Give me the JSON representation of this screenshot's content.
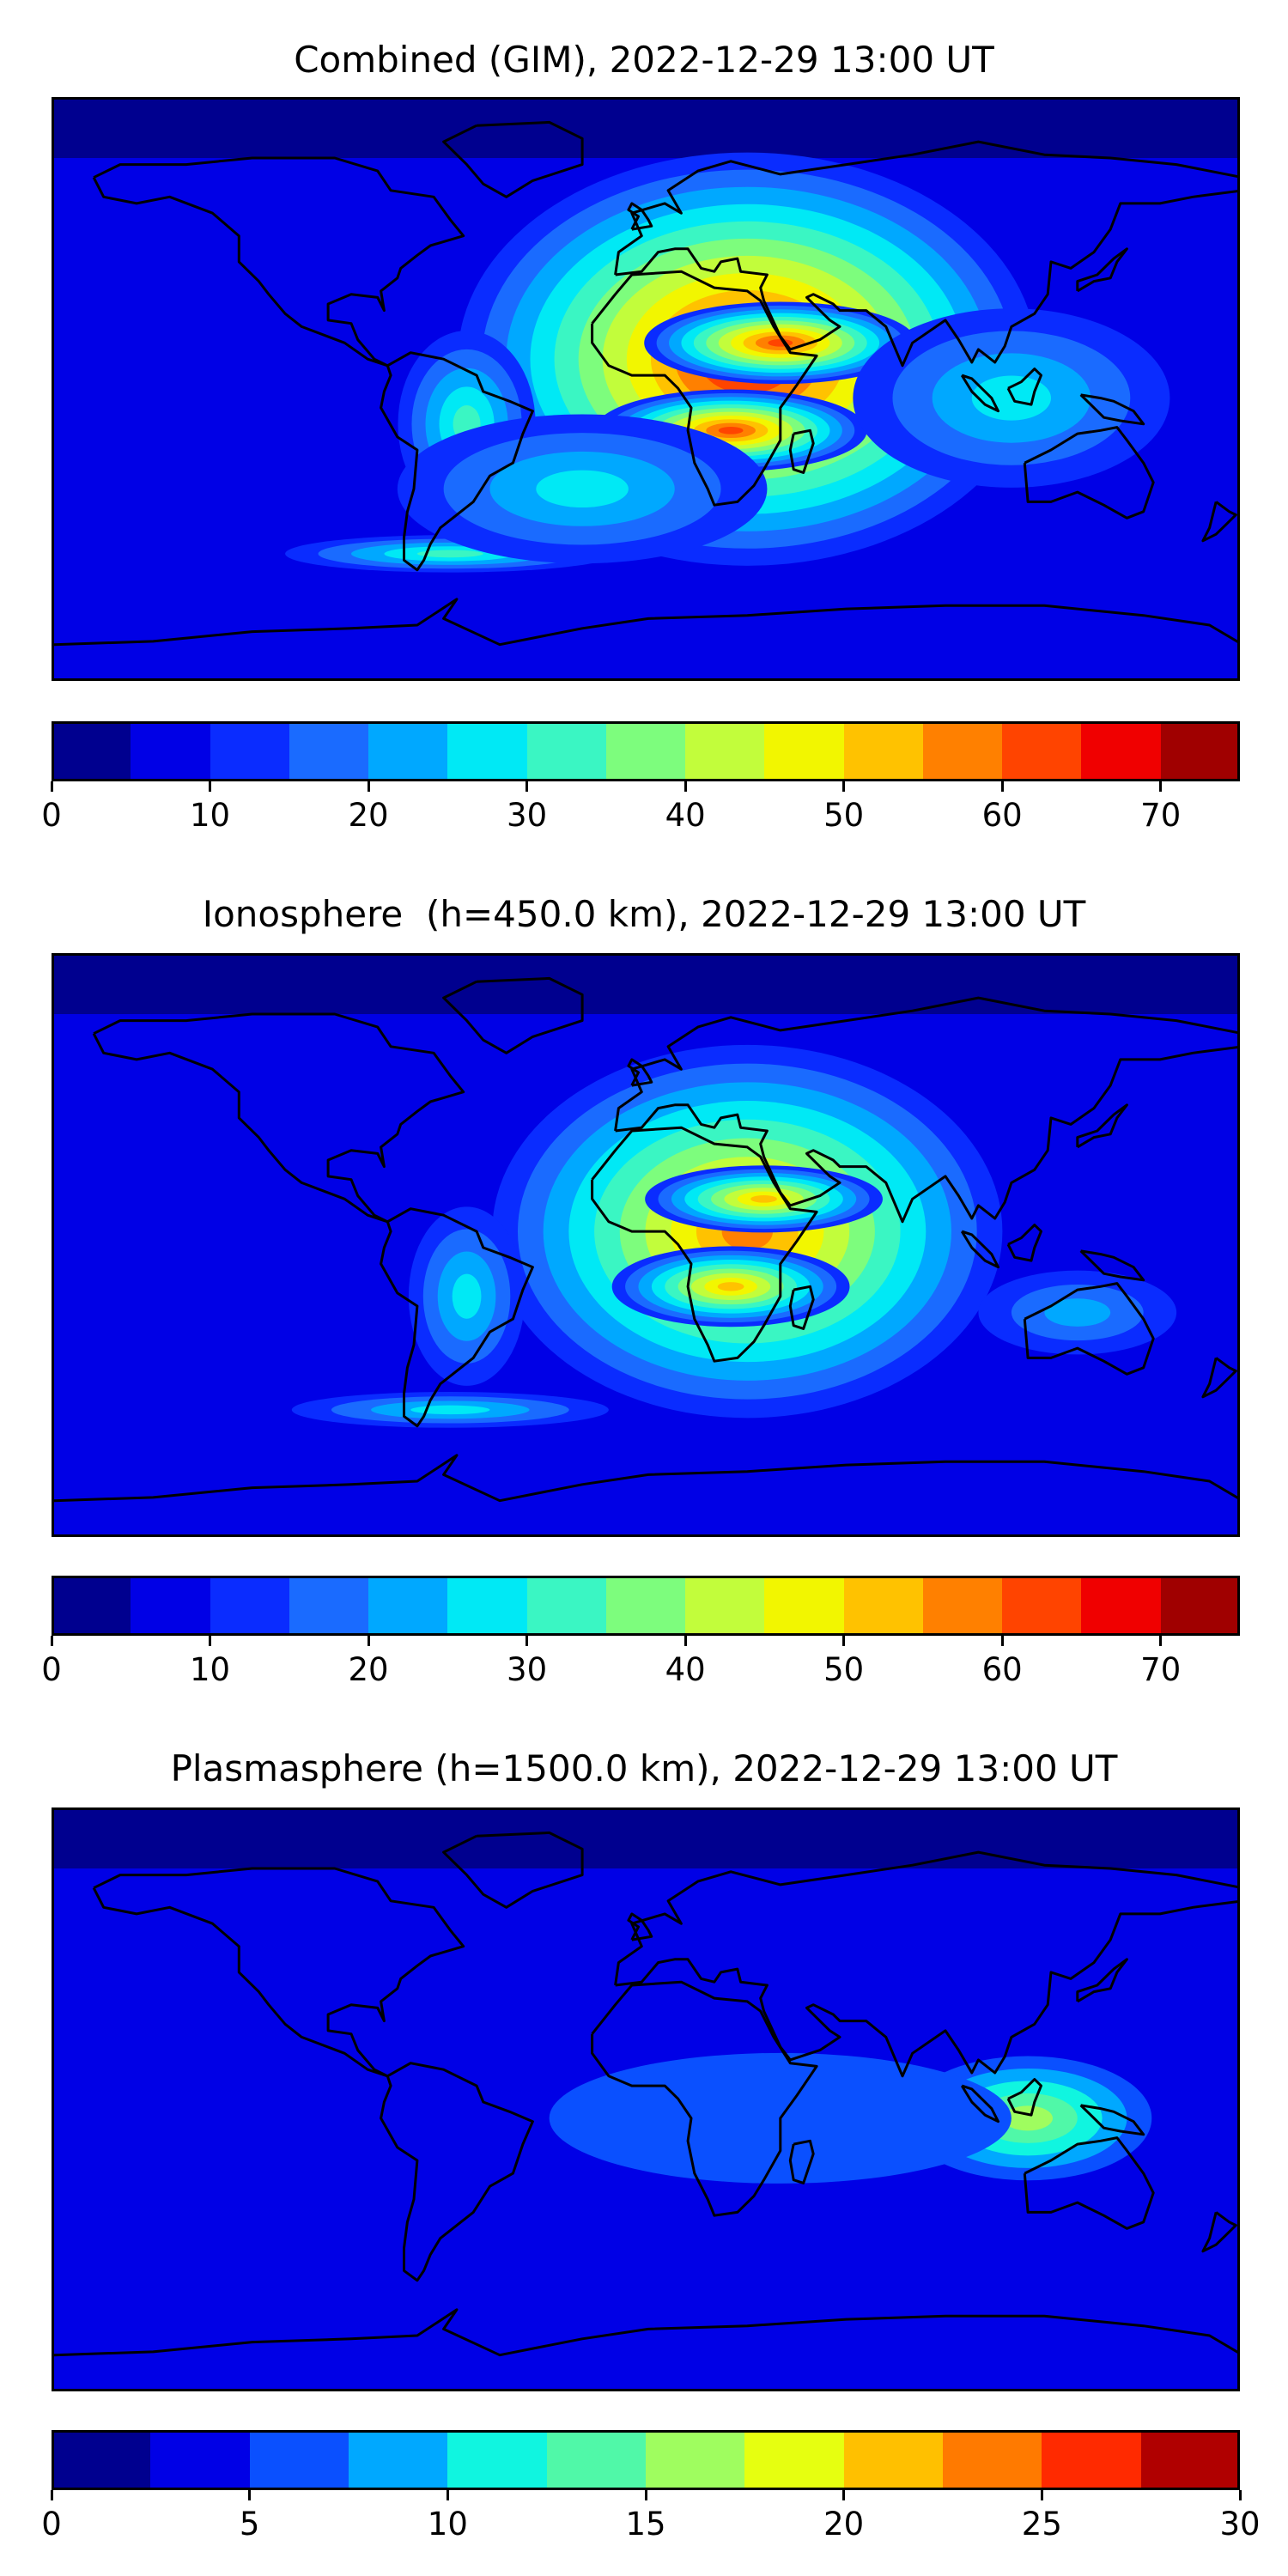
{
  "chart_data": [
    {
      "type": "heatmap",
      "title": "Combined (GIM), 2022-12-29 13:00 UT",
      "colorbar": {
        "min": 0,
        "max": 75,
        "step": 5,
        "ticks": [
          0,
          10,
          20,
          30,
          40,
          50,
          60,
          70
        ],
        "colors": [
          "#00008f",
          "#0000e6",
          "#0a2cff",
          "#1a6bff",
          "#00a8ff",
          "#00e9f5",
          "#3af6c3",
          "#7dfd7d",
          "#c2fd3b",
          "#f2f600",
          "#ffc200",
          "#ff8000",
          "#ff4400",
          "#f00000",
          "#a00000"
        ]
      },
      "field": {
        "background_level": 1,
        "hotspots": [
          {
            "lon": 30,
            "lat": 10,
            "peak": 13,
            "rx": 95,
            "ry": 60
          },
          {
            "lon": 40,
            "lat": 15,
            "peak": 12,
            "rx": 45,
            "ry": 12
          },
          {
            "lon": 25,
            "lat": -12,
            "peak": 12,
            "rx": 45,
            "ry": 12
          },
          {
            "lon": 110,
            "lat": -2,
            "peak": 5,
            "rx": 60,
            "ry": 30
          },
          {
            "lon": -55,
            "lat": -10,
            "peak": 6,
            "rx": 25,
            "ry": 30
          },
          {
            "lon": -60,
            "lat": -50,
            "peak": 6,
            "rx": 60,
            "ry": 6
          },
          {
            "lon": -20,
            "lat": -30,
            "peak": 5,
            "rx": 70,
            "ry": 25
          }
        ]
      }
    },
    {
      "type": "heatmap",
      "title": "Ionosphere  (h=450.0 km), 2022-12-29 13:00 UT",
      "colorbar": {
        "min": 0,
        "max": 75,
        "step": 5,
        "ticks": [
          0,
          10,
          20,
          30,
          40,
          50,
          60,
          70
        ],
        "colors": [
          "#00008f",
          "#0000e6",
          "#0a2cff",
          "#1a6bff",
          "#00a8ff",
          "#00e9f5",
          "#3af6c3",
          "#7dfd7d",
          "#c2fd3b",
          "#f2f600",
          "#ffc200",
          "#ff8000",
          "#ff4400",
          "#f00000",
          "#a00000"
        ]
      },
      "field": {
        "background_level": 1,
        "hotspots": [
          {
            "lon": 30,
            "lat": 5,
            "peak": 11,
            "rx": 85,
            "ry": 55
          },
          {
            "lon": 35,
            "lat": 15,
            "peak": 10,
            "rx": 40,
            "ry": 10
          },
          {
            "lon": 25,
            "lat": -12,
            "peak": 10,
            "rx": 40,
            "ry": 12
          },
          {
            "lon": -55,
            "lat": -15,
            "peak": 5,
            "rx": 22,
            "ry": 30
          },
          {
            "lon": -60,
            "lat": -50,
            "peak": 5,
            "rx": 60,
            "ry": 6
          },
          {
            "lon": 130,
            "lat": -20,
            "peak": 4,
            "rx": 40,
            "ry": 15
          }
        ]
      }
    },
    {
      "type": "heatmap",
      "title": "Plasmasphere (h=1500.0 km), 2022-12-29 13:00 UT",
      "colorbar": {
        "min": 0,
        "max": 30,
        "step": 2.5,
        "ticks": [
          0,
          5,
          10,
          15,
          20,
          25,
          30
        ],
        "colors": [
          "#00008f",
          "#0000e6",
          "#0a50ff",
          "#00a8ff",
          "#10f5e0",
          "#50f8a8",
          "#9ffd5f",
          "#e6ff10",
          "#ffc000",
          "#ff7a00",
          "#ff2a00",
          "#b00000"
        ]
      },
      "field": {
        "background_level": 1,
        "hotspots": [
          {
            "lon": 115,
            "lat": -5,
            "peak": 6,
            "rx": 45,
            "ry": 20
          },
          {
            "lon": 40,
            "lat": -5,
            "peak": 2,
            "rx": 140,
            "ry": 35
          }
        ]
      }
    }
  ]
}
